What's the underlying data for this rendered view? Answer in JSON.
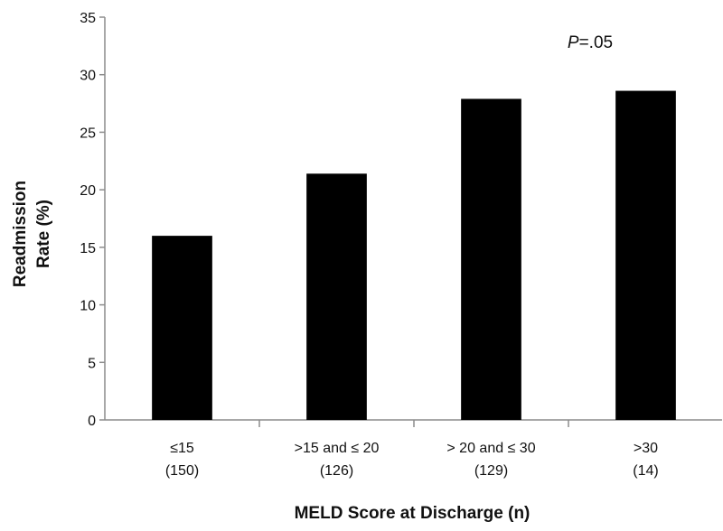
{
  "chart_data": {
    "type": "bar",
    "categories": [
      {
        "label": "≤15",
        "n": "(150)"
      },
      {
        "label": ">15 and ≤ 20",
        "n": "(126)"
      },
      {
        "label": "> 20 and ≤ 30",
        "n": "(129)"
      },
      {
        "label": ">30",
        "n": "(14)"
      }
    ],
    "values": [
      16.0,
      21.4,
      27.9,
      28.6
    ],
    "xlabel": "MELD Score at Discharge (n)",
    "ylabel_lines": [
      "Readmission",
      "Rate (%)"
    ],
    "ylim": [
      0,
      35
    ],
    "yticks": [
      0,
      5,
      10,
      15,
      20,
      25,
      30,
      35
    ],
    "annotation": {
      "italic": "P",
      "rest": "=.05"
    },
    "grid": false,
    "legend": "none",
    "bar_color": "#000000"
  }
}
